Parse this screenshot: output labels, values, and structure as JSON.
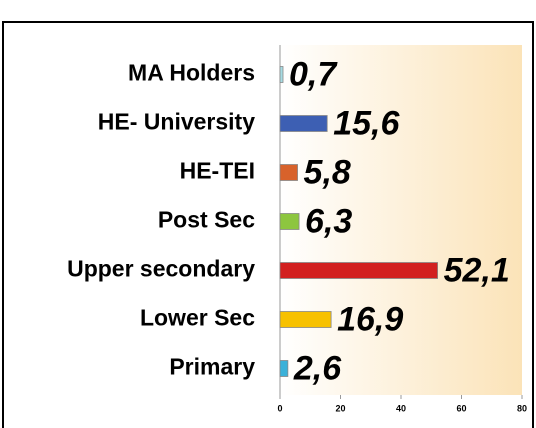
{
  "chart_data": {
    "type": "hbar",
    "categories": [
      "MA Holders",
      "HE- University",
      "HE-TEI",
      "Post Sec",
      "Upper secondary",
      "Lower Sec",
      "Primary"
    ],
    "values": [
      0.7,
      15.6,
      5.8,
      6.3,
      52.1,
      16.9,
      2.6
    ],
    "value_labels": [
      "0,7",
      "15,6",
      "5,8",
      "6,3",
      "52,1",
      "16,9",
      "2,6"
    ],
    "colors": [
      "#a6dbe3",
      "#3d5fb3",
      "#d8622b",
      "#8dc63f",
      "#d21f1f",
      "#f7c100",
      "#3bb1d9"
    ],
    "xlim": [
      0,
      80
    ],
    "xticks": [
      0,
      20,
      40,
      60,
      80
    ]
  }
}
